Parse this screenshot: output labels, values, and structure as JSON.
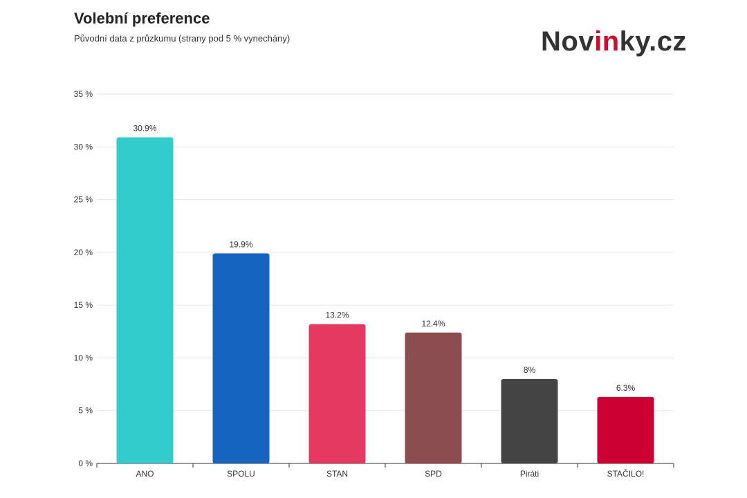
{
  "header": {
    "title": "Volební preference",
    "subtitle": "Původní data z průzkumu (strany pod 5 % vynechány)"
  },
  "logo": {
    "part1": "Nov",
    "part2": "in",
    "part3": "ky.cz",
    "accent_color": "#c8102e",
    "text_color": "#333333"
  },
  "chart_data": {
    "type": "bar",
    "title": "Volební preference",
    "subtitle": "Původní data z průzkumu (strany pod 5 % vynechány)",
    "categories": [
      "ANO",
      "SPOLU",
      "STAN",
      "SPD",
      "Piráti",
      "STAČILO!"
    ],
    "values": [
      30.9,
      19.9,
      13.2,
      12.4,
      8,
      6.3
    ],
    "data_labels": [
      "30.9%",
      "19.9%",
      "13.2%",
      "12.4%",
      "8%",
      "6.3%"
    ],
    "colors": [
      "#33cccc",
      "#1565c0",
      "#e63962",
      "#8b4c4f",
      "#444444",
      "#cc0033"
    ],
    "ylim": [
      0,
      35
    ],
    "yticks": [
      0,
      5,
      10,
      15,
      20,
      25,
      30,
      35
    ],
    "ytick_labels": [
      "0 %",
      "5 %",
      "10 %",
      "15 %",
      "20 %",
      "25 %",
      "30 %",
      "35 %"
    ],
    "grid": true,
    "legend": "none"
  }
}
